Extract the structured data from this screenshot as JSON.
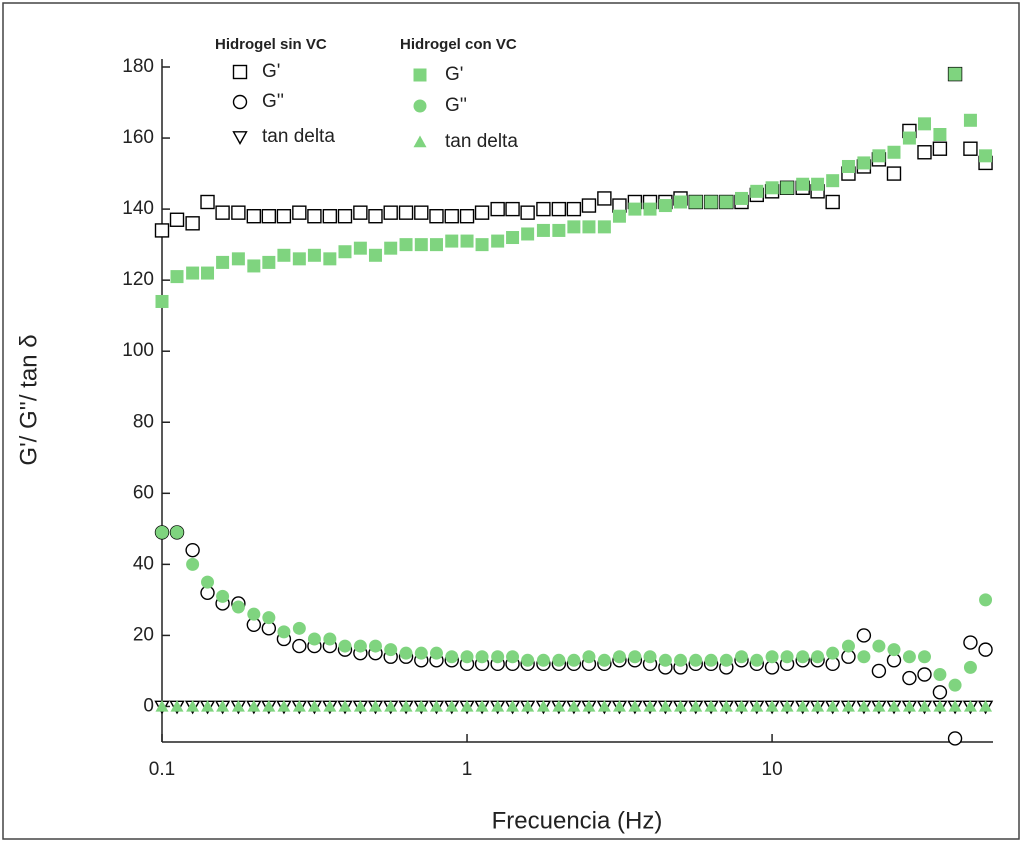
{
  "chart_data": {
    "type": "scatter",
    "xlabel": "Frecuencia (Hz)",
    "ylabel": "G'/ G''/ tan δ",
    "log_x": true,
    "xlim": [
      0.1,
      53
    ],
    "xticks": [
      0.1,
      1,
      10
    ],
    "ylim": [
      -10,
      180
    ],
    "yticks": [
      0,
      20,
      40,
      60,
      80,
      100,
      120,
      140,
      160,
      180
    ],
    "legend_titles": [
      "Hidrogel sin VC",
      "Hidrogel con VC"
    ],
    "x": [
      0.1,
      0.112,
      0.126,
      0.141,
      0.158,
      0.178,
      0.2,
      0.224,
      0.251,
      0.282,
      0.316,
      0.355,
      0.398,
      0.447,
      0.501,
      0.562,
      0.631,
      0.708,
      0.794,
      0.891,
      1,
      1.12,
      1.26,
      1.41,
      1.58,
      1.78,
      2,
      2.24,
      2.51,
      2.82,
      3.16,
      3.55,
      3.98,
      4.47,
      5.01,
      5.62,
      6.31,
      7.08,
      7.94,
      8.91,
      10,
      11.2,
      12.6,
      14.1,
      15.8,
      17.8,
      20,
      22.4,
      25.1,
      28.2,
      31.6,
      35.5,
      39.8,
      44.7,
      50.1
    ],
    "series": [
      {
        "name": "G'",
        "group": 0,
        "marker": "square",
        "filled": false,
        "color": "#000000",
        "values": [
          134,
          137,
          136,
          142,
          139,
          139,
          138,
          138,
          138,
          139,
          138,
          138,
          138,
          139,
          138,
          139,
          139,
          139,
          138,
          138,
          138,
          139,
          140,
          140,
          139,
          140,
          140,
          140,
          141,
          143,
          141,
          142,
          142,
          142,
          143,
          142,
          142,
          142,
          142,
          144,
          145,
          146,
          146,
          145,
          142,
          150,
          152,
          154,
          150,
          162,
          156,
          157,
          178,
          157,
          153
        ]
      },
      {
        "name": "G''",
        "group": 0,
        "marker": "circle",
        "filled": false,
        "color": "#000000",
        "values": [
          49,
          49,
          44,
          32,
          29,
          29,
          23,
          22,
          19,
          17,
          17,
          17,
          16,
          15,
          15,
          14,
          14,
          13,
          13,
          13,
          12,
          12,
          12,
          12,
          12,
          12,
          12,
          12,
          12,
          12,
          13,
          13,
          12,
          11,
          11,
          12,
          12,
          11,
          13,
          12,
          11,
          12,
          13,
          13,
          12,
          14,
          20,
          10,
          13,
          8,
          9,
          4,
          -9,
          18,
          16
        ]
      },
      {
        "name": "tan delta",
        "group": 0,
        "marker": "triangle-down",
        "filled": false,
        "color": "#000000",
        "values": [
          0,
          0,
          0,
          0,
          0,
          0,
          0,
          0,
          0,
          0,
          0,
          0,
          0,
          0,
          0,
          0,
          0,
          0,
          0,
          0,
          0,
          0,
          0,
          0,
          0,
          0,
          0,
          0,
          0,
          0,
          0,
          0,
          0,
          0,
          0,
          0,
          0,
          0,
          0,
          0,
          0,
          0,
          0,
          0,
          0,
          0,
          0,
          0,
          0,
          0,
          0,
          0,
          0,
          0,
          0
        ]
      },
      {
        "name": "G'",
        "group": 1,
        "marker": "square",
        "filled": true,
        "color": "#7fd47f",
        "values": [
          114,
          121,
          122,
          122,
          125,
          126,
          124,
          125,
          127,
          126,
          127,
          126,
          128,
          129,
          127,
          129,
          130,
          130,
          130,
          131,
          131,
          130,
          131,
          132,
          133,
          134,
          134,
          135,
          135,
          135,
          138,
          140,
          140,
          141,
          142,
          142,
          142,
          142,
          143,
          145,
          146,
          146,
          147,
          147,
          148,
          152,
          153,
          155,
          156,
          160,
          164,
          161,
          178,
          165,
          155
        ]
      },
      {
        "name": "G''",
        "group": 1,
        "marker": "circle",
        "filled": true,
        "color": "#7fd47f",
        "values": [
          49,
          49,
          40,
          35,
          31,
          28,
          26,
          25,
          21,
          22,
          19,
          19,
          17,
          17,
          17,
          16,
          15,
          15,
          15,
          14,
          14,
          14,
          14,
          14,
          13,
          13,
          13,
          13,
          14,
          13,
          14,
          14,
          14,
          13,
          13,
          13,
          13,
          13,
          14,
          13,
          14,
          14,
          14,
          14,
          15,
          17,
          14,
          17,
          16,
          14,
          14,
          9,
          6,
          11,
          30
        ]
      },
      {
        "name": "tan delta",
        "group": 1,
        "marker": "triangle-up",
        "filled": true,
        "color": "#7fd47f",
        "values": [
          0,
          0,
          0,
          0,
          0,
          0,
          0,
          0,
          0,
          0,
          0,
          0,
          0,
          0,
          0,
          0,
          0,
          0,
          0,
          0,
          0,
          0,
          0,
          0,
          0,
          0,
          0,
          0,
          0,
          0,
          0,
          0,
          0,
          0,
          0,
          0,
          0,
          0,
          0,
          0,
          0,
          0,
          0,
          0,
          0,
          0,
          0,
          0,
          0,
          0,
          0,
          0,
          0,
          0,
          0
        ]
      }
    ]
  }
}
